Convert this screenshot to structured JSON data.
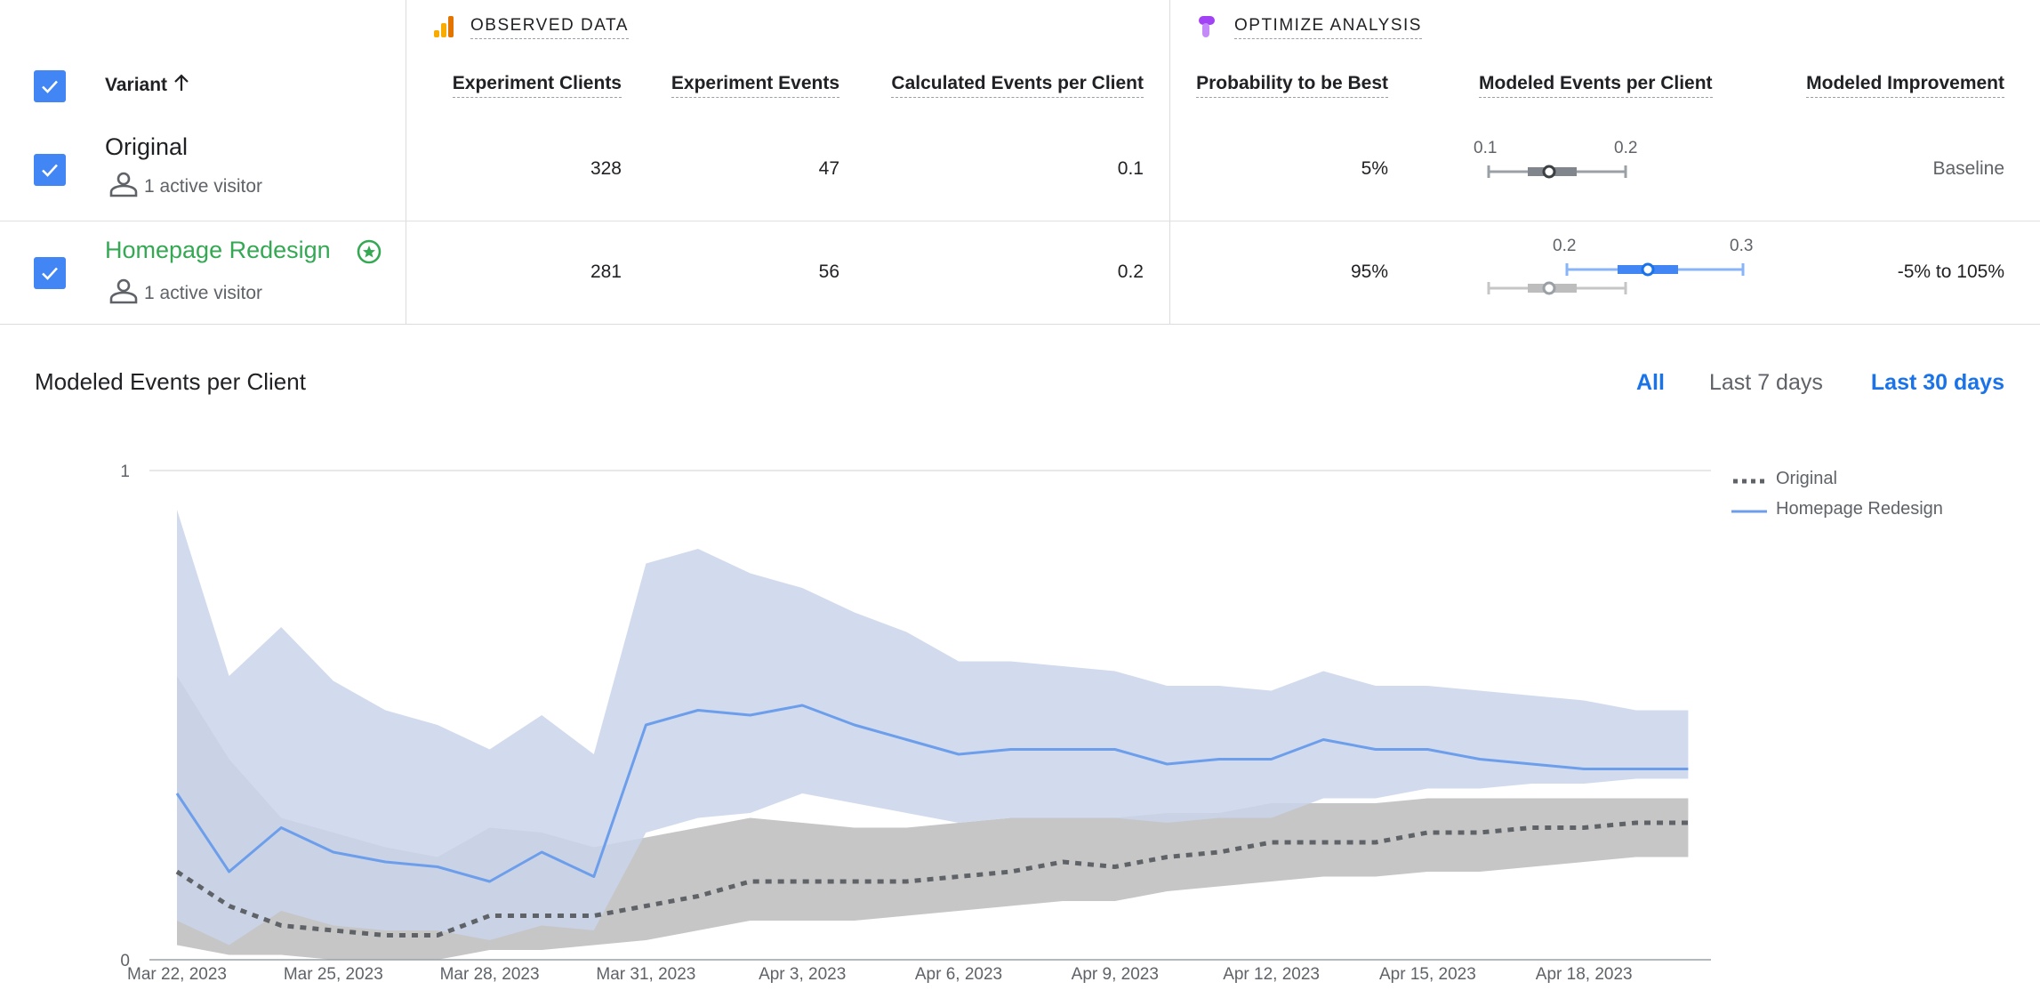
{
  "table": {
    "observed_title": "OBSERVED DATA",
    "optimize_title": "OPTIMIZE ANALYSIS",
    "headers": {
      "variant": "Variant",
      "experiment_clients": "Experiment Clients",
      "experiment_events": "Experiment Events",
      "calc_events_per_client": "Calculated Events per Client",
      "prob_best": "Probability to be Best",
      "modeled_events": "Modeled Events per Client",
      "modeled_improvement": "Modeled Improvement"
    },
    "rows": [
      {
        "name": "Original",
        "visitors": "1 active visitor",
        "experiment_clients": "328",
        "experiment_events": "47",
        "calc_events": "0.1",
        "prob_best": "5%",
        "improvement": "Baseline",
        "interval_ticks": [
          "0.1",
          "0.2"
        ]
      },
      {
        "name": "Homepage Redesign",
        "visitors": "1 active visitor",
        "experiment_clients": "281",
        "experiment_events": "56",
        "calc_events": "0.2",
        "prob_best": "95%",
        "improvement": "-5% to 105%",
        "interval_ticks": [
          "0.2",
          "0.3"
        ]
      }
    ]
  },
  "chart_section": {
    "title": "Modeled Events per Client",
    "ranges": [
      "All",
      "Last 7 days",
      "Last 30 days"
    ],
    "active_ranges": [
      "All",
      "Last 30 days"
    ]
  },
  "colors": {
    "accent_blue": "#1a73e8",
    "checkbox_blue": "#4285f4",
    "winner_green": "#34a853",
    "original_line": "#5f6368",
    "redesign_line": "#6d9eeb",
    "redesign_band": "#c9d5ea",
    "original_band": "#c6c6c6"
  },
  "chart_data": {
    "type": "line",
    "title": "Modeled Events per Client",
    "ylim": [
      0,
      1
    ],
    "yticks": [
      "0",
      "1"
    ],
    "x": [
      "Mar 22, 2023",
      "Mar 23, 2023",
      "Mar 24, 2023",
      "Mar 25, 2023",
      "Mar 26, 2023",
      "Mar 27, 2023",
      "Mar 28, 2023",
      "Mar 29, 2023",
      "Mar 30, 2023",
      "Mar 31, 2023",
      "Apr 1, 2023",
      "Apr 2, 2023",
      "Apr 3, 2023",
      "Apr 4, 2023",
      "Apr 5, 2023",
      "Apr 6, 2023",
      "Apr 7, 2023",
      "Apr 8, 2023",
      "Apr 9, 2023",
      "Apr 10, 2023",
      "Apr 11, 2023",
      "Apr 12, 2023",
      "Apr 13, 2023",
      "Apr 14, 2023",
      "Apr 15, 2023",
      "Apr 16, 2023",
      "Apr 17, 2023",
      "Apr 18, 2023",
      "Apr 19, 2023",
      "Apr 20, 2023"
    ],
    "xtick_labels": [
      "Mar 22, 2023",
      "Mar 25, 2023",
      "Mar 28, 2023",
      "Mar 31, 2023",
      "Apr 3, 2023",
      "Apr 6, 2023",
      "Apr 9, 2023",
      "Apr 12, 2023",
      "Apr 15, 2023",
      "Apr 18, 2023"
    ],
    "legend_position": "top-right",
    "series": [
      {
        "name": "Original",
        "style": "dotted",
        "values": [
          0.18,
          0.11,
          0.07,
          0.06,
          0.05,
          0.05,
          0.09,
          0.09,
          0.09,
          0.11,
          0.13,
          0.16,
          0.16,
          0.16,
          0.16,
          0.17,
          0.18,
          0.2,
          0.19,
          0.21,
          0.22,
          0.24,
          0.24,
          0.24,
          0.26,
          0.26,
          0.27,
          0.27,
          0.28,
          0.28
        ],
        "lower": [
          0.03,
          0.01,
          0.01,
          0.0,
          0.0,
          0.0,
          0.02,
          0.02,
          0.03,
          0.04,
          0.06,
          0.08,
          0.08,
          0.08,
          0.09,
          0.1,
          0.11,
          0.12,
          0.12,
          0.14,
          0.15,
          0.16,
          0.17,
          0.17,
          0.18,
          0.18,
          0.19,
          0.2,
          0.21,
          0.21
        ],
        "upper": [
          0.58,
          0.41,
          0.29,
          0.26,
          0.23,
          0.21,
          0.27,
          0.26,
          0.23,
          0.25,
          0.27,
          0.29,
          0.28,
          0.27,
          0.27,
          0.28,
          0.29,
          0.29,
          0.29,
          0.3,
          0.3,
          0.32,
          0.32,
          0.32,
          0.33,
          0.33,
          0.33,
          0.33,
          0.33,
          0.33
        ]
      },
      {
        "name": "Homepage Redesign",
        "style": "solid",
        "values": [
          0.34,
          0.18,
          0.27,
          0.22,
          0.2,
          0.19,
          0.16,
          0.22,
          0.17,
          0.48,
          0.51,
          0.5,
          0.52,
          0.48,
          0.45,
          0.42,
          0.43,
          0.43,
          0.43,
          0.4,
          0.41,
          0.41,
          0.45,
          0.43,
          0.43,
          0.41,
          0.4,
          0.39,
          0.39,
          0.39
        ],
        "lower": [
          0.08,
          0.03,
          0.1,
          0.07,
          0.06,
          0.06,
          0.04,
          0.07,
          0.06,
          0.26,
          0.29,
          0.3,
          0.34,
          0.32,
          0.3,
          0.28,
          0.29,
          0.29,
          0.29,
          0.28,
          0.29,
          0.29,
          0.33,
          0.33,
          0.35,
          0.35,
          0.36,
          0.36,
          0.37,
          0.37
        ],
        "upper": [
          0.92,
          0.58,
          0.68,
          0.57,
          0.51,
          0.48,
          0.43,
          0.5,
          0.42,
          0.81,
          0.84,
          0.79,
          0.76,
          0.71,
          0.67,
          0.61,
          0.61,
          0.6,
          0.59,
          0.56,
          0.56,
          0.55,
          0.59,
          0.56,
          0.56,
          0.55,
          0.54,
          0.53,
          0.51,
          0.51
        ]
      }
    ]
  }
}
